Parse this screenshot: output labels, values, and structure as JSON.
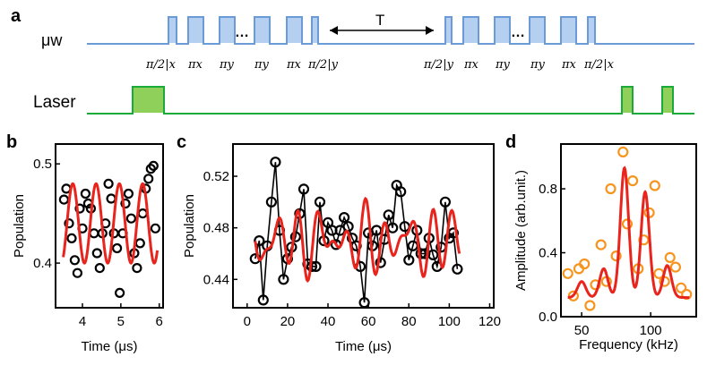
{
  "figure": {
    "panel_labels": [
      "a",
      "b",
      "c",
      "d"
    ],
    "mw_label": "μw",
    "laser_label": "Laser",
    "T_label": "T",
    "ellipsis": "…",
    "pulse_labels_left": [
      "π/2|x",
      "πx",
      "πy",
      "πy",
      "πx",
      "π/2|y"
    ],
    "pulse_labels_right": [
      "π/2|y",
      "πx",
      "πy",
      "πy",
      "πx",
      "π/2|x"
    ],
    "colors": {
      "mw": "#6b9bd6",
      "mw_fill": "#a9c7ee",
      "laser": "#1aaa3a",
      "laser_fill": "#8ed05a",
      "fit": "#e8241c",
      "data_black": "#000000",
      "data_orange": "#f7941d"
    }
  },
  "chart_data": [
    {
      "id": "b",
      "type": "scatter",
      "title": "",
      "xlabel": "Time (μs)",
      "ylabel": "Population",
      "xlim": [
        3.3,
        6.1
      ],
      "ylim": [
        0.355,
        0.52
      ],
      "xticks": [
        4,
        5,
        6
      ],
      "yticks": [
        0.4,
        0.5
      ],
      "ytick_labels": [
        "0.4",
        "0.5"
      ],
      "points": [
        [
          3.52,
          0.464
        ],
        [
          3.58,
          0.475
        ],
        [
          3.65,
          0.44
        ],
        [
          3.72,
          0.425
        ],
        [
          3.8,
          0.403
        ],
        [
          3.87,
          0.39
        ],
        [
          3.93,
          0.455
        ],
        [
          4.0,
          0.435
        ],
        [
          4.08,
          0.47
        ],
        [
          4.15,
          0.46
        ],
        [
          4.22,
          0.455
        ],
        [
          4.3,
          0.43
        ],
        [
          4.38,
          0.41
        ],
        [
          4.45,
          0.395
        ],
        [
          4.52,
          0.43
        ],
        [
          4.6,
          0.44
        ],
        [
          4.68,
          0.48
        ],
        [
          4.75,
          0.465
        ],
        [
          4.82,
          0.43
        ],
        [
          4.9,
          0.415
        ],
        [
          4.97,
          0.37
        ],
        [
          5.05,
          0.43
        ],
        [
          5.12,
          0.46
        ],
        [
          5.2,
          0.47
        ],
        [
          5.27,
          0.445
        ],
        [
          5.35,
          0.41
        ],
        [
          5.42,
          0.395
        ],
        [
          5.5,
          0.42
        ],
        [
          5.57,
          0.45
        ],
        [
          5.65,
          0.475
        ],
        [
          5.72,
          0.485
        ],
        [
          5.78,
          0.495
        ],
        [
          5.85,
          0.498
        ],
        [
          5.9,
          0.435
        ]
      ],
      "fit": {
        "type": "sine",
        "offset": 0.44,
        "amplitude": 0.04,
        "frequency_per_us": 1.65,
        "phase": 0.4,
        "x_range": [
          3.5,
          5.95
        ]
      }
    },
    {
      "id": "c",
      "type": "line",
      "title": "",
      "xlabel": "Time (μs)",
      "ylabel": "Population",
      "xlim": [
        -7,
        122
      ],
      "ylim": [
        0.418,
        0.545
      ],
      "xticks": [
        0,
        20,
        40,
        60,
        80,
        100,
        120
      ],
      "yticks": [
        0.44,
        0.48,
        0.52
      ],
      "ytick_labels": [
        "0.44",
        "0.48",
        "0.52"
      ],
      "points": [
        [
          4,
          0.456
        ],
        [
          6,
          0.47
        ],
        [
          8,
          0.424
        ],
        [
          10,
          0.466
        ],
        [
          12,
          0.5
        ],
        [
          14,
          0.531
        ],
        [
          16,
          0.478
        ],
        [
          18,
          0.44
        ],
        [
          20,
          0.456
        ],
        [
          22,
          0.465
        ],
        [
          24,
          0.473
        ],
        [
          26,
          0.491
        ],
        [
          28,
          0.51
        ],
        [
          30,
          0.452
        ],
        [
          32,
          0.45
        ],
        [
          34,
          0.45
        ],
        [
          36,
          0.5
        ],
        [
          38,
          0.47
        ],
        [
          40,
          0.484
        ],
        [
          42,
          0.478
        ],
        [
          44,
          0.467
        ],
        [
          46,
          0.478
        ],
        [
          48,
          0.488
        ],
        [
          50,
          0.481
        ],
        [
          52,
          0.472
        ],
        [
          54,
          0.466
        ],
        [
          56,
          0.45
        ],
        [
          58,
          0.422
        ],
        [
          60,
          0.476
        ],
        [
          62,
          0.466
        ],
        [
          64,
          0.478
        ],
        [
          66,
          0.453
        ],
        [
          68,
          0.471
        ],
        [
          70,
          0.49
        ],
        [
          72,
          0.48
        ],
        [
          74,
          0.513
        ],
        [
          76,
          0.508
        ],
        [
          78,
          0.481
        ],
        [
          80,
          0.455
        ],
        [
          82,
          0.466
        ],
        [
          84,
          0.478
        ],
        [
          86,
          0.46
        ],
        [
          88,
          0.46
        ],
        [
          90,
          0.472
        ],
        [
          92,
          0.459
        ],
        [
          94,
          0.45
        ],
        [
          96,
          0.465
        ],
        [
          98,
          0.5
        ],
        [
          100,
          0.472
        ],
        [
          102,
          0.476
        ],
        [
          104,
          0.448
        ]
      ],
      "fit": {
        "type": "beat",
        "offset": 0.47,
        "components": [
          [
            0.015,
            0.09,
            0.0
          ],
          [
            0.012,
            0.12,
            1.2
          ],
          [
            0.006,
            0.05,
            2.1
          ]
        ],
        "x_range": [
          4,
          105
        ]
      }
    },
    {
      "id": "d",
      "type": "scatter",
      "title": "",
      "xlabel": "Frequency (kHz)",
      "ylabel": "Amplitude (arb.unit.)",
      "xlim": [
        35,
        133
      ],
      "ylim": [
        0.0,
        1.08
      ],
      "xticks": [
        50,
        100
      ],
      "yticks": [
        0.0,
        0.4,
        0.8
      ],
      "ytick_labels": [
        "0.0",
        "0.4",
        "0.8"
      ],
      "points": [
        [
          40,
          0.27
        ],
        [
          44,
          0.13
        ],
        [
          48,
          0.3
        ],
        [
          52,
          0.33
        ],
        [
          56,
          0.07
        ],
        [
          60,
          0.2
        ],
        [
          64,
          0.45
        ],
        [
          68,
          0.22
        ],
        [
          71,
          0.8
        ],
        [
          75,
          0.38
        ],
        [
          80,
          1.03
        ],
        [
          83,
          0.58
        ],
        [
          87,
          0.85
        ],
        [
          91,
          0.3
        ],
        [
          95,
          0.48
        ],
        [
          99,
          0.65
        ],
        [
          103,
          0.82
        ],
        [
          106,
          0.27
        ],
        [
          110,
          0.22
        ],
        [
          114,
          0.37
        ],
        [
          118,
          0.31
        ],
        [
          122,
          0.18
        ],
        [
          126,
          0.14
        ]
      ],
      "fit": {
        "type": "peaks",
        "baseline": 0.12,
        "x_range": [
          40,
          128
        ],
        "peaks": [
          [
            50,
            0.22,
            3.0
          ],
          [
            66,
            0.3,
            3.0
          ],
          [
            81,
            0.93,
            3.0
          ],
          [
            96,
            0.78,
            3.0
          ],
          [
            112,
            0.32,
            3.0
          ]
        ]
      }
    }
  ]
}
